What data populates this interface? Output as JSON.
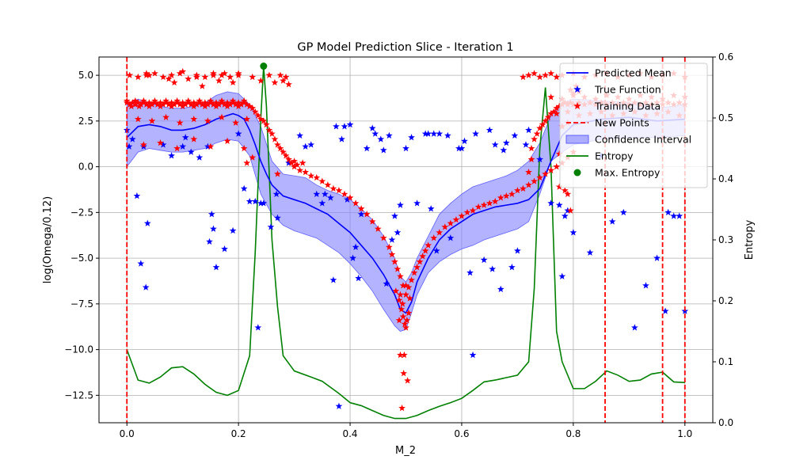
{
  "chart_data": {
    "type": "line",
    "title": "GP Model Prediction Slice - Iteration 1",
    "xlabel": "M_2",
    "ylabel": "log(Omega/0.12)",
    "y2label": "Entropy",
    "xlim": [
      -0.05,
      1.05
    ],
    "ylim": [
      -14.0,
      6.0
    ],
    "y2lim": [
      0.0,
      0.6
    ],
    "xticks": [
      0.0,
      0.2,
      0.4,
      0.6,
      0.8,
      1.0
    ],
    "yticks": [
      -12.5,
      -10.0,
      -7.5,
      -5.0,
      -2.5,
      0.0,
      2.5,
      5.0
    ],
    "y2ticks": [
      0.0,
      0.1,
      0.2,
      0.3,
      0.4,
      0.5,
      0.6
    ],
    "xtick_labels": [
      "0.0",
      "0.2",
      "0.4",
      "0.6",
      "0.8",
      "1.0"
    ],
    "ytick_labels": [
      "−12.5",
      "−10.0",
      "−7.5",
      "−5.0",
      "−2.5",
      "0.0",
      "2.5",
      "5.0"
    ],
    "y2tick_labels": [
      "0.0",
      "0.1",
      "0.2",
      "0.3",
      "0.4",
      "0.5",
      "0.6"
    ],
    "grid": true,
    "legend_position": "top-right",
    "colors": {
      "mean": "#0000ff",
      "true": "#0000ff",
      "training": "#ff0000",
      "new_points": "#ff0000",
      "ci_fill": "#8080ff",
      "entropy": "#008000",
      "max_entropy": "#008000"
    },
    "legend": [
      {
        "key": "mean",
        "label": "Predicted Mean",
        "kind": "line"
      },
      {
        "key": "true",
        "label": "True Function",
        "kind": "star"
      },
      {
        "key": "training",
        "label": "Training Data",
        "kind": "star"
      },
      {
        "key": "new_points",
        "label": "New Points",
        "kind": "dashed"
      },
      {
        "key": "ci_fill",
        "label": "Confidence Interval",
        "kind": "patch"
      },
      {
        "key": "entropy",
        "label": "Entropy",
        "kind": "line"
      },
      {
        "key": "max_entropy",
        "label": "Max. Entropy",
        "kind": "dot"
      }
    ],
    "predicted_mean": {
      "x": [
        0.0,
        0.02,
        0.04,
        0.06,
        0.08,
        0.1,
        0.12,
        0.14,
        0.16,
        0.18,
        0.19,
        0.2,
        0.21,
        0.22,
        0.23,
        0.24,
        0.25,
        0.26,
        0.27,
        0.28,
        0.3,
        0.32,
        0.34,
        0.36,
        0.38,
        0.4,
        0.42,
        0.44,
        0.46,
        0.48,
        0.49,
        0.5,
        0.51,
        0.52,
        0.54,
        0.56,
        0.58,
        0.6,
        0.62,
        0.64,
        0.66,
        0.68,
        0.7,
        0.72,
        0.74,
        0.76,
        0.78,
        0.8,
        0.85,
        0.9,
        0.95,
        1.0
      ],
      "y": [
        1.6,
        2.2,
        2.3,
        2.2,
        2.0,
        2.0,
        2.1,
        2.3,
        2.6,
        2.8,
        2.9,
        2.8,
        2.6,
        2.0,
        1.2,
        0.3,
        -0.4,
        -1.0,
        -1.3,
        -1.6,
        -1.8,
        -2.0,
        -2.3,
        -2.6,
        -3.1,
        -3.6,
        -4.3,
        -5.0,
        -5.9,
        -7.0,
        -7.8,
        -8.0,
        -7.4,
        -6.3,
        -5.0,
        -4.0,
        -3.4,
        -3.0,
        -2.6,
        -2.4,
        -2.2,
        -2.1,
        -2.0,
        -1.8,
        -1.2,
        0.3,
        1.7,
        2.3,
        2.6,
        2.7,
        2.5,
        2.6
      ]
    },
    "confidence_interval": {
      "x": [
        0.0,
        0.02,
        0.04,
        0.06,
        0.08,
        0.1,
        0.12,
        0.14,
        0.16,
        0.18,
        0.2,
        0.22,
        0.24,
        0.26,
        0.28,
        0.3,
        0.32,
        0.34,
        0.36,
        0.38,
        0.4,
        0.42,
        0.44,
        0.46,
        0.48,
        0.49,
        0.5,
        0.51,
        0.52,
        0.54,
        0.56,
        0.58,
        0.6,
        0.62,
        0.64,
        0.66,
        0.68,
        0.7,
        0.72,
        0.74,
        0.76,
        0.78,
        0.8,
        0.85,
        0.9,
        0.95,
        1.0
      ],
      "upper": [
        3.4,
        3.7,
        3.5,
        3.3,
        3.2,
        3.2,
        3.3,
        3.5,
        3.9,
        4.1,
        4.0,
        3.4,
        2.2,
        0.3,
        -0.4,
        -0.5,
        -0.6,
        -1.0,
        -1.3,
        -1.5,
        -1.8,
        -2.3,
        -2.9,
        -3.8,
        -5.0,
        -6.0,
        -6.3,
        -5.8,
        -5.0,
        -3.8,
        -2.6,
        -2.0,
        -1.5,
        -1.1,
        -0.9,
        -0.7,
        -0.5,
        -0.2,
        0.3,
        1.3,
        2.8,
        3.5,
        3.7,
        3.6,
        3.5,
        3.2,
        3.4
      ],
      "lower": [
        0.0,
        0.8,
        1.0,
        0.9,
        0.8,
        0.8,
        0.9,
        1.0,
        1.3,
        1.5,
        1.4,
        0.6,
        -1.5,
        -2.6,
        -3.2,
        -3.5,
        -3.7,
        -3.9,
        -4.3,
        -4.7,
        -5.3,
        -6.0,
        -6.8,
        -7.8,
        -8.7,
        -9.0,
        -8.9,
        -8.0,
        -7.0,
        -5.8,
        -5.2,
        -4.8,
        -4.5,
        -4.3,
        -4.0,
        -3.8,
        -3.6,
        -3.4,
        -3.0,
        -1.5,
        0.3,
        0.8,
        1.2,
        1.5,
        1.6,
        1.6,
        1.7
      ]
    },
    "entropy": {
      "x": [
        0.0,
        0.02,
        0.04,
        0.06,
        0.08,
        0.1,
        0.12,
        0.14,
        0.16,
        0.18,
        0.2,
        0.22,
        0.23,
        0.24,
        0.245,
        0.25,
        0.26,
        0.27,
        0.28,
        0.3,
        0.33,
        0.35,
        0.38,
        0.4,
        0.42,
        0.44,
        0.46,
        0.48,
        0.5,
        0.52,
        0.54,
        0.56,
        0.58,
        0.6,
        0.62,
        0.64,
        0.66,
        0.68,
        0.7,
        0.72,
        0.73,
        0.74,
        0.75,
        0.76,
        0.77,
        0.78,
        0.8,
        0.82,
        0.84,
        0.86,
        0.88,
        0.9,
        0.92,
        0.94,
        0.96,
        0.98,
        1.0
      ],
      "y": [
        0.12,
        0.07,
        0.065,
        0.075,
        0.09,
        0.092,
        0.08,
        0.063,
        0.05,
        0.045,
        0.053,
        0.11,
        0.28,
        0.5,
        0.585,
        0.52,
        0.3,
        0.19,
        0.11,
        0.085,
        0.075,
        0.068,
        0.048,
        0.033,
        0.028,
        0.02,
        0.012,
        0.007,
        0.007,
        0.012,
        0.02,
        0.027,
        0.033,
        0.04,
        0.053,
        0.067,
        0.07,
        0.074,
        0.078,
        0.1,
        0.22,
        0.45,
        0.55,
        0.42,
        0.15,
        0.1,
        0.056,
        0.056,
        0.068,
        0.085,
        0.078,
        0.068,
        0.07,
        0.08,
        0.083,
        0.067,
        0.066
      ]
    },
    "max_entropy_point": {
      "x": 0.245,
      "y": 0.585
    },
    "new_points_x": [
      0.0,
      0.857,
      0.96,
      1.0
    ],
    "true_function": {
      "x": [
        0.0,
        0.004,
        0.01,
        0.018,
        0.025,
        0.03,
        0.034,
        0.037,
        0.065,
        0.08,
        0.1,
        0.105,
        0.115,
        0.13,
        0.145,
        0.148,
        0.152,
        0.155,
        0.16,
        0.175,
        0.19,
        0.2,
        0.21,
        0.22,
        0.23,
        0.235,
        0.24,
        0.245,
        0.258,
        0.268,
        0.27,
        0.29,
        0.31,
        0.32,
        0.33,
        0.34,
        0.35,
        0.355,
        0.365,
        0.37,
        0.375,
        0.38,
        0.385,
        0.39,
        0.395,
        0.4,
        0.405,
        0.41,
        0.415,
        0.42,
        0.43,
        0.44,
        0.445,
        0.455,
        0.46,
        0.465,
        0.47,
        0.475,
        0.48,
        0.485,
        0.49,
        0.5,
        0.51,
        0.52,
        0.535,
        0.54,
        0.545,
        0.55,
        0.555,
        0.56,
        0.575,
        0.58,
        0.595,
        0.6,
        0.605,
        0.615,
        0.62,
        0.625,
        0.64,
        0.65,
        0.655,
        0.66,
        0.67,
        0.675,
        0.68,
        0.69,
        0.695,
        0.7,
        0.715,
        0.72,
        0.74,
        0.76,
        0.775,
        0.78,
        0.785,
        0.79,
        0.8,
        0.83,
        0.85,
        0.87,
        0.89,
        0.91,
        0.93,
        0.95,
        0.965,
        0.97,
        0.98,
        0.99,
        1.0
      ],
      "y": [
        2.0,
        1.1,
        1.5,
        -1.6,
        -5.3,
        1.1,
        -6.6,
        -3.1,
        1.2,
        0.6,
        1.1,
        1.6,
        0.8,
        0.5,
        1.1,
        -4.1,
        -2.6,
        -3.4,
        -5.5,
        -4.5,
        -3.5,
        1.8,
        -1.2,
        -1.9,
        -1.9,
        -8.8,
        -2.0,
        -2.0,
        -3.3,
        -1.5,
        -2.8,
        0.2,
        1.7,
        1.1,
        1.2,
        -1.5,
        -2.0,
        -1.5,
        -1.7,
        -6.2,
        2.2,
        -13.1,
        1.5,
        2.2,
        -1.8,
        2.3,
        -5.0,
        -4.4,
        -6.1,
        -2.6,
        1.0,
        2.1,
        1.8,
        1.5,
        0.9,
        -6.4,
        1.7,
        -4.0,
        -2.7,
        -3.6,
        -2.1,
        1.0,
        1.6,
        -2.0,
        1.8,
        1.8,
        -2.3,
        1.8,
        -4.6,
        1.8,
        1.7,
        -3.9,
        1.0,
        1.0,
        1.4,
        -5.8,
        -10.3,
        1.8,
        -5.1,
        2.0,
        -5.6,
        1.2,
        -6.7,
        0.9,
        1.3,
        -5.5,
        1.7,
        -4.6,
        1.2,
        2.0,
        0.4,
        -2.0,
        -2.1,
        -6.0,
        -2.7,
        -2.4,
        -3.6,
        -4.7,
        0.6,
        -3.0,
        -2.5,
        -8.8,
        -6.5,
        -5.0,
        -7.9,
        -2.5,
        -2.7,
        -2.7,
        -7.9
      ]
    },
    "training_data": {
      "x": [
        0.0,
        0.005,
        0.01,
        0.015,
        0.02,
        0.025,
        0.03,
        0.035,
        0.04,
        0.045,
        0.05,
        0.055,
        0.06,
        0.065,
        0.07,
        0.075,
        0.08,
        0.085,
        0.09,
        0.095,
        0.1,
        0.105,
        0.11,
        0.115,
        0.12,
        0.125,
        0.13,
        0.135,
        0.14,
        0.145,
        0.15,
        0.155,
        0.16,
        0.165,
        0.17,
        0.175,
        0.18,
        0.185,
        0.19,
        0.195,
        0.2,
        0.205,
        0.21,
        0.215,
        0.22,
        0.225,
        0.23,
        0.235,
        0.24,
        0.245,
        0.25,
        0.255,
        0.26,
        0.265,
        0.27,
        0.275,
        0.28,
        0.285,
        0.29,
        0.295,
        0.0,
        0.008,
        0.015,
        0.022,
        0.03,
        0.04,
        0.05,
        0.06,
        0.07,
        0.08,
        0.09,
        0.1,
        0.11,
        0.12,
        0.13,
        0.14,
        0.15,
        0.16,
        0.17,
        0.18,
        0.19,
        0.2,
        0.21,
        0.22,
        0.005,
        0.02,
        0.035,
        0.05,
        0.065,
        0.08,
        0.095,
        0.11,
        0.125,
        0.14,
        0.155,
        0.17,
        0.185,
        0.2,
        0.02,
        0.045,
        0.07,
        0.095,
        0.12,
        0.145,
        0.17,
        0.195,
        0.215,
        0.03,
        0.06,
        0.09,
        0.12,
        0.15,
        0.18,
        0.21,
        0.035,
        0.04,
        0.075,
        0.085,
        0.1,
        0.125,
        0.135,
        0.155,
        0.165,
        0.175,
        0.19,
        0.2,
        0.225,
        0.24,
        0.255,
        0.265,
        0.275,
        0.28,
        0.285,
        0.29,
        0.215,
        0.225,
        0.27,
        0.3,
        0.305,
        0.31,
        0.3,
        0.315,
        0.32,
        0.33,
        0.34,
        0.35,
        0.36,
        0.37,
        0.38,
        0.39,
        0.4,
        0.41,
        0.42,
        0.43,
        0.44,
        0.45,
        0.46,
        0.47,
        0.475,
        0.48,
        0.485,
        0.49,
        0.495,
        0.5,
        0.505,
        0.51,
        0.515,
        0.52,
        0.525,
        0.53,
        0.535,
        0.54,
        0.55,
        0.56,
        0.57,
        0.58,
        0.59,
        0.6,
        0.61,
        0.62,
        0.63,
        0.64,
        0.65,
        0.66,
        0.67,
        0.68,
        0.69,
        0.7,
        0.71,
        0.72,
        0.73,
        0.74,
        0.75,
        0.76,
        0.77,
        0.78,
        0.79,
        0.8,
        0.482,
        0.488,
        0.492,
        0.495,
        0.498,
        0.5,
        0.502,
        0.505,
        0.49,
        0.496,
        0.503,
        0.49,
        0.494,
        0.5,
        0.488,
        0.507,
        0.493,
        0.497,
        0.725,
        0.73,
        0.735,
        0.74,
        0.745,
        0.75,
        0.755,
        0.76,
        0.765,
        0.77,
        0.775,
        0.78,
        0.785,
        0.79,
        0.795,
        0.8,
        0.81,
        0.82,
        0.83,
        0.84,
        0.85,
        0.86,
        0.87,
        0.88,
        0.89,
        0.9,
        0.91,
        0.92,
        0.93,
        0.94,
        0.95,
        0.96,
        0.97,
        0.98,
        0.99,
        1.0,
        0.71,
        0.72,
        0.73,
        0.74,
        0.75,
        0.76,
        0.77,
        0.78,
        0.8,
        0.82,
        0.84,
        0.86,
        0.88,
        0.9,
        0.92,
        0.94,
        0.96,
        0.98,
        1.0,
        0.76,
        0.78,
        0.8,
        0.82,
        0.84,
        0.86,
        0.88,
        0.9,
        0.92,
        0.94,
        0.96,
        0.98,
        1.0,
        0.77,
        0.79,
        0.81,
        0.83,
        0.85,
        0.87,
        0.89,
        0.91,
        0.93,
        0.95,
        0.97,
        0.99,
        0.795,
        0.8,
        0.805,
        0.81,
        0.78,
        0.79,
        0.775,
        0.785,
        0.79,
        0.795,
        0.72,
        0.725,
        0.775
      ],
      "y": [
        3.5,
        3.4,
        3.5,
        3.4,
        3.5,
        3.4,
        3.5,
        3.4,
        3.5,
        3.4,
        3.5,
        3.4,
        3.5,
        3.4,
        3.5,
        3.4,
        3.5,
        3.4,
        3.5,
        3.4,
        3.5,
        3.4,
        3.5,
        3.4,
        3.5,
        3.4,
        3.5,
        3.4,
        3.5,
        3.4,
        3.5,
        3.4,
        3.5,
        3.4,
        3.5,
        3.4,
        3.5,
        3.4,
        3.5,
        3.4,
        3.5,
        3.4,
        3.5,
        3.4,
        3.3,
        3.2,
        3.0,
        2.8,
        2.6,
        2.5,
        2.3,
        2.0,
        1.8,
        1.5,
        1.2,
        1.0,
        0.8,
        0.6,
        0.4,
        0.2,
        3.6,
        3.3,
        3.6,
        3.3,
        3.6,
        3.3,
        3.6,
        3.3,
        3.6,
        3.3,
        3.6,
        3.3,
        3.6,
        3.3,
        3.6,
        3.3,
        3.6,
        3.3,
        3.6,
        3.3,
        3.6,
        3.3,
        3.6,
        3.3,
        5.0,
        4.9,
        5.0,
        5.1,
        4.9,
        5.0,
        5.1,
        4.8,
        5.0,
        4.9,
        5.1,
        5.0,
        4.9,
        5.1,
        2.6,
        2.5,
        2.7,
        2.4,
        2.6,
        2.5,
        2.7,
        2.4,
        2.6,
        1.2,
        1.3,
        1.0,
        1.5,
        1.1,
        1.4,
        1.0,
        5.1,
        5.0,
        4.8,
        4.6,
        5.2,
        4.9,
        4.4,
        5.0,
        4.7,
        5.1,
        4.6,
        5.0,
        4.9,
        4.7,
        5.0,
        4.6,
        5.0,
        4.7,
        4.9,
        4.5,
        0.2,
        0.5,
        -0.4,
        0.3,
        0.1,
        -0.2,
        0.0,
        0.2,
        -0.3,
        -0.5,
        -0.6,
        -0.8,
        -1.0,
        -1.2,
        -1.3,
        -1.5,
        -1.7,
        -2.0,
        -2.3,
        -2.6,
        -3.0,
        -3.4,
        -3.9,
        -4.4,
        -4.8,
        -5.2,
        -5.6,
        -6.0,
        -6.5,
        -7.0,
        -6.6,
        -6.2,
        -5.8,
        -5.5,
        -5.2,
        -4.9,
        -4.6,
        -4.3,
        -3.9,
        -3.6,
        -3.3,
        -3.1,
        -2.9,
        -2.7,
        -2.5,
        -2.4,
        -2.2,
        -2.1,
        -2.0,
        -1.9,
        -1.7,
        -1.6,
        -1.5,
        -1.3,
        -1.2,
        -1.0,
        -0.8,
        -0.6,
        -0.4,
        -0.2,
        0.0,
        0.2,
        0.5,
        0.8,
        -6.8,
        -7.3,
        -7.8,
        -8.2,
        -8.6,
        -8.8,
        -8.4,
        -8.0,
        -10.3,
        -11.3,
        -11.7,
        -7.0,
        -7.5,
        -6.5,
        -8.4,
        -7.2,
        -13.2,
        -10.3,
        1.0,
        1.5,
        1.8,
        2.1,
        2.3,
        2.5,
        2.7,
        2.9,
        3.0,
        3.2,
        3.3,
        3.4,
        3.5,
        3.4,
        3.5,
        3.4,
        3.5,
        3.4,
        3.5,
        3.4,
        3.5,
        3.4,
        3.5,
        3.4,
        3.5,
        3.4,
        3.5,
        3.4,
        3.5,
        3.4,
        3.5,
        3.4,
        3.5,
        3.4,
        3.5,
        3.4,
        4.9,
        5.0,
        5.1,
        4.9,
        5.0,
        5.1,
        4.9,
        5.0,
        5.1,
        4.9,
        5.0,
        5.1,
        4.9,
        5.0,
        5.1,
        4.9,
        5.0,
        5.1,
        4.9,
        3.8,
        3.7,
        3.9,
        3.8,
        3.7,
        3.9,
        3.8,
        3.7,
        3.9,
        3.8,
        3.7,
        3.9,
        3.8,
        2.9,
        3.0,
        2.8,
        2.9,
        3.0,
        2.8,
        2.9,
        3.0,
        2.8,
        2.9,
        3.0,
        2.8,
        4.2,
        4.0,
        4.4,
        4.1,
        2.2,
        2.4,
        -1.1,
        -1.3,
        -1.5,
        -2.4,
        -0.3,
        0.4,
        0.7
      ]
    }
  }
}
